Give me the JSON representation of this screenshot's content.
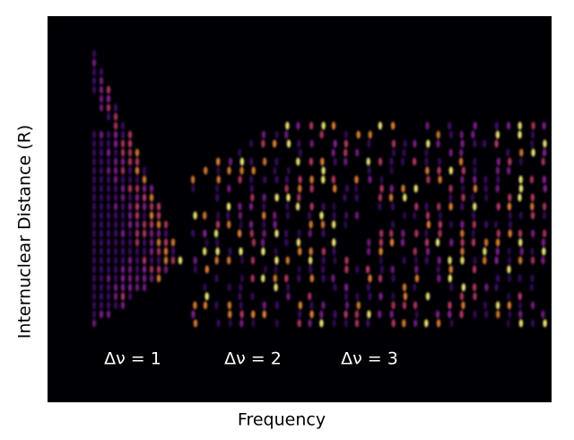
{
  "chart_data": {
    "type": "heatmap",
    "xlabel": "Frequency",
    "ylabel": "Internuclear Distance (R)",
    "annotations": [
      "Δν = 1",
      "Δν = 2",
      "Δν = 3"
    ]
  }
}
